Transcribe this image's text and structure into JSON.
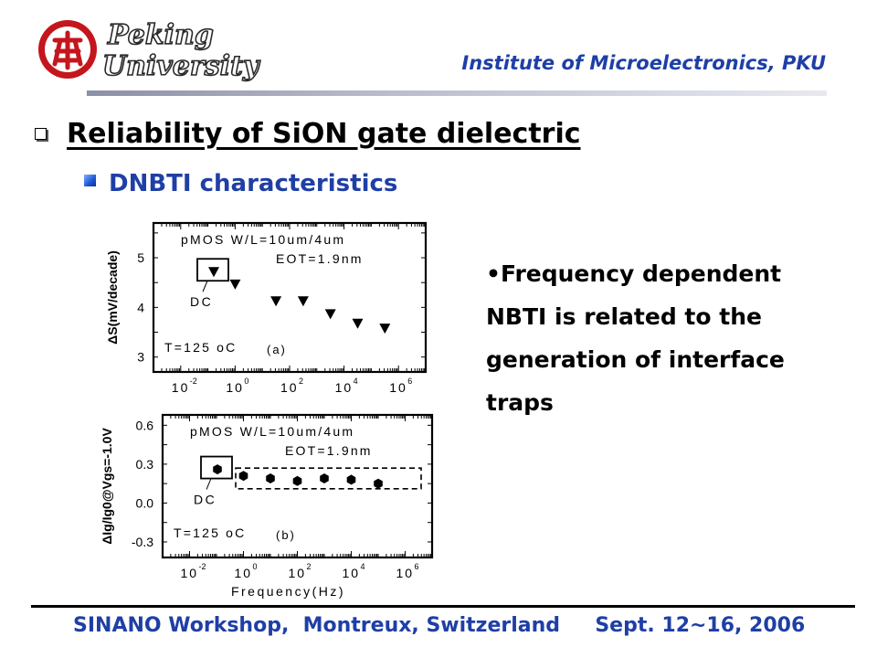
{
  "header": {
    "logo_text_line1": "Peking",
    "logo_text_line2": "University",
    "institute": "Institute of Microelectronics, PKU"
  },
  "slide": {
    "title": "Reliability of SiON gate dielectric",
    "subtitle": "DNBTI characteristics",
    "bullet": "•Frequency dependent NBTI is related to the generation of interface traps"
  },
  "footer": {
    "text": "SINANO Workshop,  Montreux, Switzerland     Sept. 12~16, 2006"
  },
  "colors": {
    "accent": "#1f3fa6",
    "logo_red": "#c4161c"
  },
  "chart_data": [
    {
      "type": "scatter",
      "panel": "(a)",
      "ylabel": "ΔS(mV/decade)",
      "xlabel": "",
      "x_scale": "log",
      "xlim": [
        0.001,
        10000000
      ],
      "ylim": [
        2.7,
        5.7
      ],
      "xticks": [
        0.01,
        1,
        100,
        10000,
        1000000
      ],
      "xtick_labels": [
        [
          "10",
          "-2"
        ],
        [
          "10",
          "0"
        ],
        [
          "10",
          "2"
        ],
        [
          "10",
          "4"
        ],
        [
          "10",
          "6"
        ]
      ],
      "yticks": [
        3,
        4,
        5
      ],
      "ytick_labels": [
        "3",
        "4",
        "5"
      ],
      "marker": "triangle-down",
      "dc_point": {
        "label": "DC",
        "y": 4.72
      },
      "x": [
        1,
        31.6,
        316,
        3160,
        31600,
        316000
      ],
      "y": [
        4.47,
        4.13,
        4.13,
        3.87,
        3.68,
        3.58
      ],
      "annotations": [
        "pMOS  W/L=10um/4um",
        "EOT=1.9nm",
        "T=125 oC",
        "(a)"
      ]
    },
    {
      "type": "scatter",
      "panel": "(b)",
      "ylabel": "ΔIg/Ig0@Vgs=-1.0V",
      "xlabel": "Frequency(Hz)",
      "x_scale": "log",
      "xlim": [
        0.001,
        10000000
      ],
      "ylim": [
        -0.42,
        0.68
      ],
      "xticks": [
        0.01,
        1,
        100,
        10000,
        1000000
      ],
      "xtick_labels": [
        [
          "10",
          "-2"
        ],
        [
          "10",
          "0"
        ],
        [
          "10",
          "2"
        ],
        [
          "10",
          "4"
        ],
        [
          "10",
          "6"
        ]
      ],
      "yticks": [
        -0.3,
        0.0,
        0.3,
        0.6
      ],
      "ytick_labels": [
        "-0.3",
        "0.0",
        "0.3",
        "0.6"
      ],
      "marker": "hexagon",
      "dc_point": {
        "label": "DC",
        "y": 0.26
      },
      "x": [
        1,
        10,
        100,
        1000,
        10000,
        100000
      ],
      "y": [
        0.21,
        0.19,
        0.17,
        0.19,
        0.18,
        0.15
      ],
      "annotations": [
        "pMOS  W/L=10um/4um",
        "EOT=1.9nm",
        "T=125 oC",
        "(b)"
      ]
    }
  ]
}
